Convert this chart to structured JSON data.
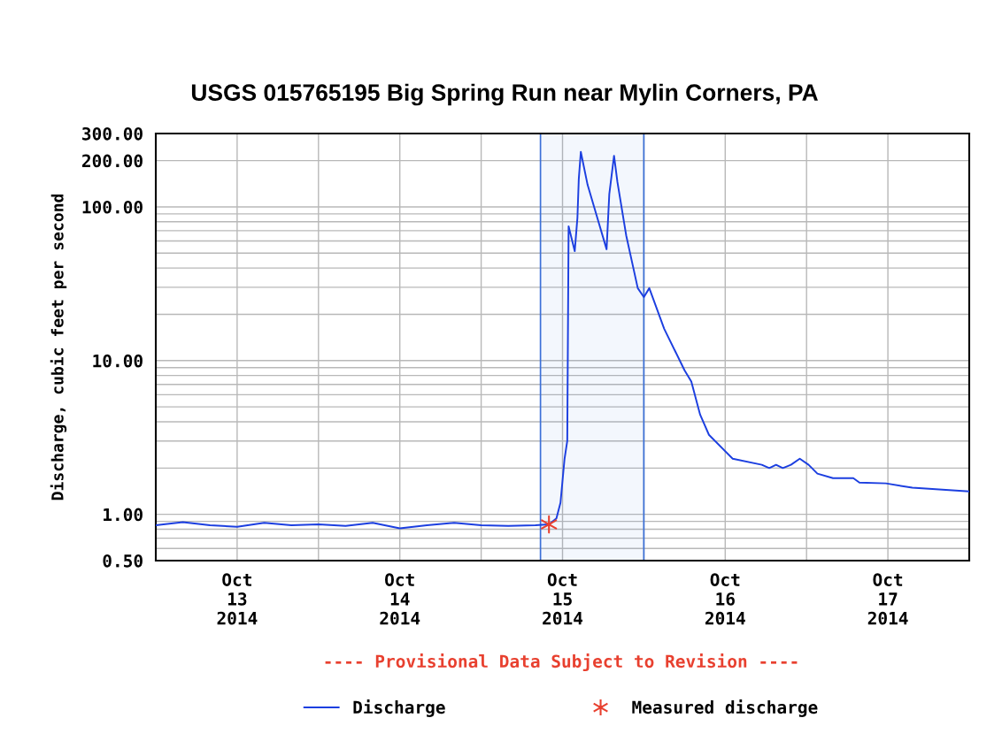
{
  "chart_data": {
    "type": "line",
    "title": "USGS 015765195 Big Spring Run near Mylin Corners, PA",
    "ylabel": "Discharge, cubic feet per second",
    "annotations": [
      "---- Provisional Data Subject to Revision ----"
    ],
    "log": "y",
    "grid": true,
    "legend": "bottom",
    "xlim": [
      "2014-10-13T00:00",
      "2014-10-18T00:00"
    ],
    "xticks": [
      {
        "value": "2014-10-13T12:00",
        "label": "Oct\n13\n2014"
      },
      {
        "value": "2014-10-14T00:00",
        "label": null
      },
      {
        "value": "2014-10-14T12:00",
        "label": "Oct\n14\n2014"
      },
      {
        "value": "2014-10-15T00:00",
        "label": null
      },
      {
        "value": "2014-10-15T12:00",
        "label": "Oct\n15\n2014"
      },
      {
        "value": "2014-10-16T00:00",
        "label": null
      },
      {
        "value": "2014-10-16T12:00",
        "label": "Oct\n16\n2014"
      },
      {
        "value": "2014-10-17T00:00",
        "label": null
      },
      {
        "value": "2014-10-17T12:00",
        "label": "Oct\n17\n2014"
      }
    ],
    "ylim": [
      0.5,
      300
    ],
    "yticks": [
      {
        "value": 0.5,
        "label": "0.50"
      },
      {
        "value": 0.6,
        "label": null
      },
      {
        "value": 0.7,
        "label": null
      },
      {
        "value": 0.8,
        "label": null
      },
      {
        "value": 0.9,
        "label": null
      },
      {
        "value": 1,
        "label": "1.00"
      },
      {
        "value": 2,
        "label": null
      },
      {
        "value": 3,
        "label": null
      },
      {
        "value": 4,
        "label": null
      },
      {
        "value": 5,
        "label": null
      },
      {
        "value": 6,
        "label": null
      },
      {
        "value": 7,
        "label": null
      },
      {
        "value": 8,
        "label": null
      },
      {
        "value": 9,
        "label": null
      },
      {
        "value": 10,
        "label": "10.00"
      },
      {
        "value": 20,
        "label": null
      },
      {
        "value": 30,
        "label": null
      },
      {
        "value": 40,
        "label": null
      },
      {
        "value": 50,
        "label": null
      },
      {
        "value": 60,
        "label": null
      },
      {
        "value": 70,
        "label": null
      },
      {
        "value": 80,
        "label": null
      },
      {
        "value": 90,
        "label": null
      },
      {
        "value": 100,
        "label": "100.00"
      },
      {
        "value": 200,
        "label": "200.00"
      },
      {
        "value": 300,
        "label": "300.00"
      }
    ],
    "bands": [
      {
        "axis": "x",
        "from": "2014-10-15T08:45",
        "to": "2014-10-16T00:00",
        "label": null,
        "color": "#3a6fd8"
      }
    ],
    "series": [
      {
        "name": "Discharge",
        "color": "#1c3fe0",
        "marker": "none",
        "line_style": "solid",
        "x": [
          "2014-10-13T00:00",
          "2014-10-13T04:00",
          "2014-10-13T08:00",
          "2014-10-13T12:00",
          "2014-10-13T16:00",
          "2014-10-13T20:00",
          "2014-10-14T00:00",
          "2014-10-14T04:00",
          "2014-10-14T08:00",
          "2014-10-14T12:00",
          "2014-10-14T16:00",
          "2014-10-14T20:00",
          "2014-10-15T00:00",
          "2014-10-15T04:00",
          "2014-10-15T08:00",
          "2014-10-15T10:00",
          "2014-10-15T11:06",
          "2014-10-15T11:42",
          "2014-10-15T12:18",
          "2014-10-15T12:42",
          "2014-10-15T12:48",
          "2014-10-15T12:54",
          "2014-10-15T13:48",
          "2014-10-15T14:12",
          "2014-10-15T14:24",
          "2014-10-15T14:42",
          "2014-10-15T15:42",
          "2014-10-15T18:30",
          "2014-10-15T18:54",
          "2014-10-15T19:36",
          "2014-10-15T20:06",
          "2014-10-15T21:24",
          "2014-10-15T23:06",
          "2014-10-16T00:00",
          "2014-10-16T00:48",
          "2014-10-16T03:00",
          "2014-10-16T06:00",
          "2014-10-16T07:00",
          "2014-10-16T08:18",
          "2014-10-16T09:36",
          "2014-10-16T13:06",
          "2014-10-16T17:24",
          "2014-10-16T18:30",
          "2014-10-16T19:30",
          "2014-10-16T20:30",
          "2014-10-16T21:42",
          "2014-10-16T23:00",
          "2014-10-17T00:18",
          "2014-10-17T01:36",
          "2014-10-17T03:54",
          "2014-10-17T06:54",
          "2014-10-17T07:48",
          "2014-10-17T11:42",
          "2014-10-17T15:36",
          "2014-10-18T00:00"
        ],
        "values": [
          0.85,
          0.89,
          0.85,
          0.83,
          0.88,
          0.85,
          0.86,
          0.84,
          0.88,
          0.81,
          0.85,
          0.88,
          0.85,
          0.84,
          0.85,
          0.86,
          0.94,
          1.19,
          2.3,
          3.0,
          15.2,
          74.8,
          51.5,
          85,
          152,
          228,
          139,
          53,
          121,
          215,
          145,
          65,
          29.6,
          25.9,
          29.6,
          16.1,
          8.65,
          7.3,
          4.45,
          3.29,
          2.3,
          2.1,
          2.0,
          2.1,
          2.0,
          2.1,
          2.3,
          2.1,
          1.84,
          1.72,
          1.72,
          1.61,
          1.59,
          1.49,
          1.41
        ]
      },
      {
        "name": "Measured discharge",
        "type": "scatter",
        "color": "#e8402f",
        "marker": "cross",
        "x": [
          "2014-10-15T10:00"
        ],
        "values": [
          0.86
        ]
      }
    ]
  }
}
